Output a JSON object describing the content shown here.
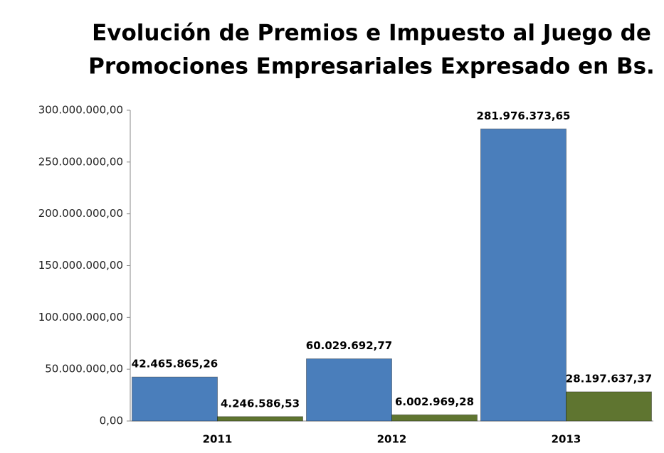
{
  "chart_data": {
    "type": "bar",
    "title": [
      "Evolución de Premios e Impuesto al Juego de",
      "Promociones Empresariales Expresado en Bs."
    ],
    "categories": [
      "2011",
      "2012",
      "2013"
    ],
    "series": [
      {
        "color": "#4a7ebb",
        "values": [
          42465865.26,
          60029692.77,
          281976373.65
        ],
        "value_labels": [
          "42.465.865,26",
          "60.029.692,77",
          "281.976.373,65"
        ]
      },
      {
        "color": "#5f7530",
        "values": [
          4246586.53,
          6002969.28,
          28197637.37
        ],
        "value_labels": [
          "4.246.586,53",
          "6.002.969,28",
          "28.197.637,37"
        ]
      }
    ],
    "ylim": [
      0,
      300000000
    ],
    "yticks": [
      {
        "value": 0,
        "label": "0,00"
      },
      {
        "value": 50000000,
        "label": "50.000.000,00"
      },
      {
        "value": 100000000,
        "label": "100.000.000,00"
      },
      {
        "value": 150000000,
        "label": "150.000.000,00"
      },
      {
        "value": 200000000,
        "label": "200.000.000,00"
      },
      {
        "value": 250000000,
        "label": "250.000.000,00"
      },
      {
        "value": 300000000,
        "label": "300.000.000,00"
      }
    ],
    "grid": false
  }
}
